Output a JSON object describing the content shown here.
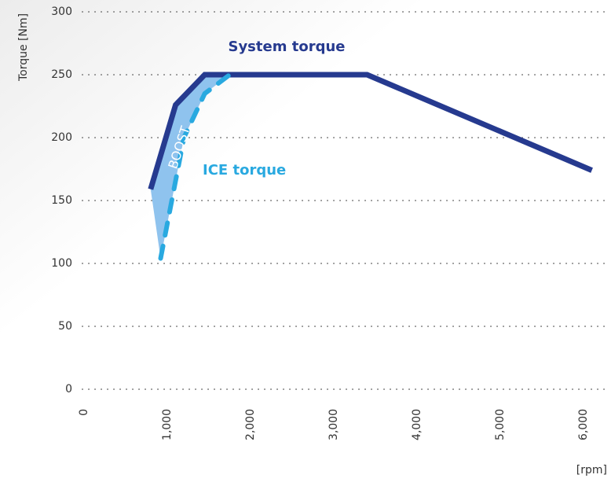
{
  "chart_data": {
    "type": "line",
    "y_label": "Torque [Nm]",
    "x_label": "[rpm]",
    "annotation": "BOOST",
    "xlim": [
      0,
      6400
    ],
    "ylim": [
      0,
      300
    ],
    "xticks": [
      0,
      {
        "value": 1000,
        "label": "1,000"
      },
      {
        "value": 2000,
        "label": "2,000"
      },
      {
        "value": 3000,
        "label": "3,000"
      },
      {
        "value": 4000,
        "label": "4,000"
      },
      {
        "value": 5000,
        "label": "5,000"
      },
      {
        "value": 6000,
        "label": "6,000"
      }
    ],
    "yticks": [
      0,
      50,
      100,
      150,
      200,
      250,
      300
    ],
    "grid": true,
    "series": [
      {
        "name": "System torque",
        "color": "#263a8f",
        "dashed": false,
        "x": [
          800,
          1100,
          1450,
          3400,
          6100
        ],
        "values": [
          159,
          226,
          250,
          250,
          174
        ]
      },
      {
        "name": "ICE torque",
        "color": "#29a9e0",
        "dashed": true,
        "x": [
          920,
          1200,
          1450,
          1750
        ],
        "values": [
          104,
          200,
          235,
          250
        ]
      }
    ],
    "boost_color": "#8fc3ee"
  }
}
